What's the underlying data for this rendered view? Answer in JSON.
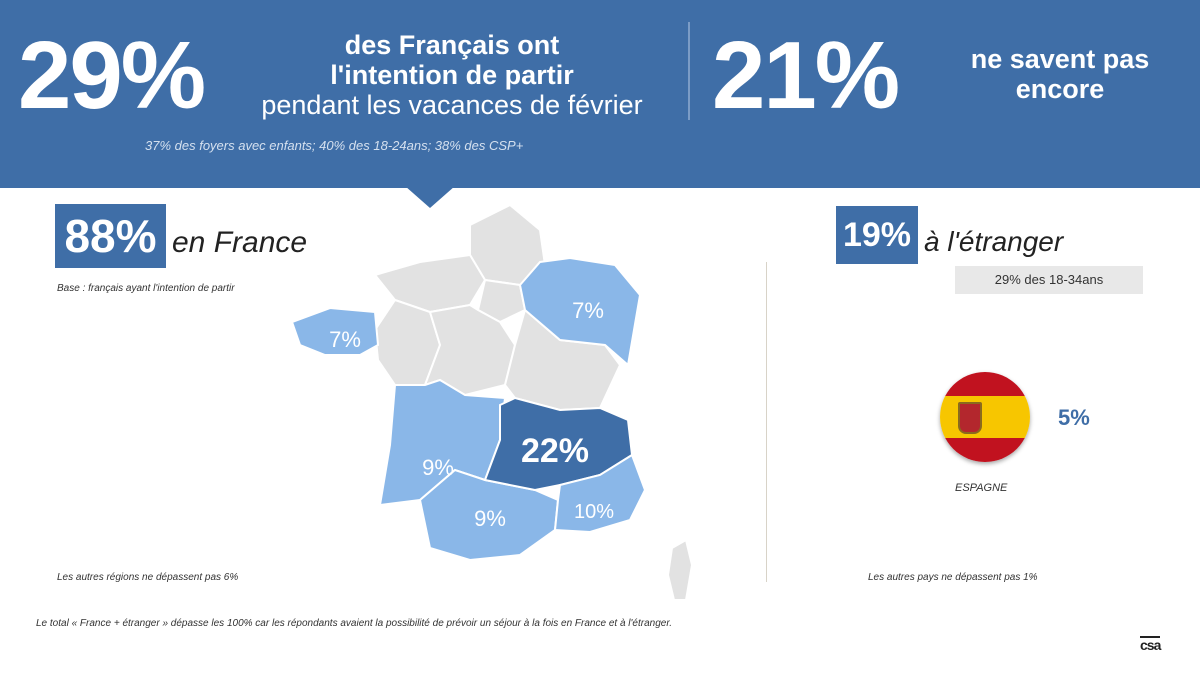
{
  "banner": {
    "left_pct": "29%",
    "left_text_bold": "des Français ont l'intention de partir",
    "left_text_normal": "pendant les vacances de février",
    "left_sub": "37% des foyers avec enfants; 40% des 18-24ans;  38% des CSP+",
    "right_pct": "21%",
    "right_text": "ne savent pas encore"
  },
  "france": {
    "pct": "88%",
    "label": "en France",
    "base_note": "Base : français ayant l'intention de partir",
    "other_note": "Les autres régions ne dépassent pas 6%",
    "regions": [
      {
        "name": "Bretagne",
        "value": "7%",
        "color": "#8ab7e8"
      },
      {
        "name": "Grand Est",
        "value": "7%",
        "color": "#8ab7e8"
      },
      {
        "name": "Nouvelle-Aquitaine",
        "value": "9%",
        "color": "#8ab7e8"
      },
      {
        "name": "Occitanie",
        "value": "9%",
        "color": "#8ab7e8"
      },
      {
        "name": "Auvergne-Rhône-Alpes",
        "value": "22%",
        "color": "#3f6ea7"
      },
      {
        "name": "Provence-Alpes-Côte d'Azur",
        "value": "10%",
        "color": "#8ab7e8"
      }
    ]
  },
  "abroad": {
    "pct": "19%",
    "label": "à l'étranger",
    "tag": "29% des 18-34ans",
    "country": "ESPAGNE",
    "country_pct": "5%",
    "other_note": "Les autres pays ne dépassent pas 1%"
  },
  "footnote": "Le total « France + étranger » dépasse les 100% car les répondants avaient la possibilité de prévoir un séjour à la fois en France et à l'étranger.",
  "logo": "csa",
  "colors": {
    "primary": "#3f6ea7",
    "light_region": "#8ab7e8",
    "neutral_region": "#e2e2e2"
  }
}
